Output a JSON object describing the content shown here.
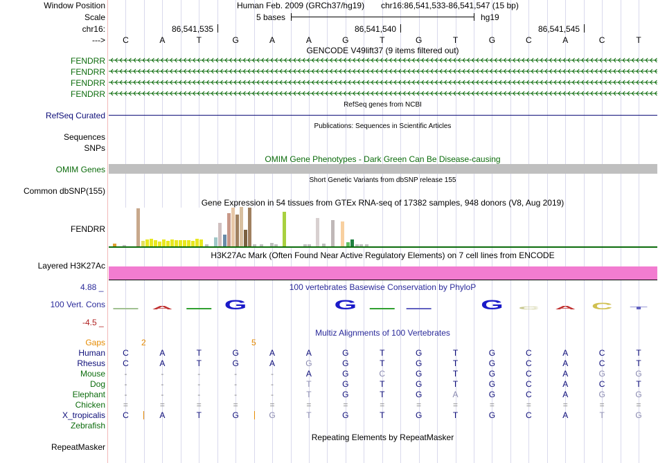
{
  "colors": {
    "gencode_green": "#0b6b0b",
    "refseq_navy": "#0c0c78",
    "gray_bar": "#bfbfbf",
    "h3k27ac_pink": "#f27cd0",
    "gaps_orange": "#e58a00",
    "cons_blue": "#2a2a9a",
    "cons_red": "#b02020"
  },
  "header": {
    "window_position_label": "Window Position",
    "assembly_text": "Human Feb. 2009 (GRCh37/hg19)",
    "position_text": "chr16:86,541,533-86,541,547 (15 bp)",
    "scale_label": "Scale",
    "scale_text": "5 bases",
    "scale_db": "hg19",
    "chrom_label": "chr16:",
    "strand_label": "--->",
    "coords": [
      "86,541,535",
      "86,541,540",
      "86,541,545"
    ]
  },
  "bases": [
    "C",
    "A",
    "T",
    "G",
    "A",
    "A",
    "G",
    "T",
    "G",
    "T",
    "G",
    "C",
    "A",
    "C",
    "T"
  ],
  "gencode": {
    "title": "GENCODE V49lift37 (9 items filtered out)",
    "tracks": [
      "FENDRR",
      "FENDRR",
      "FENDRR",
      "FENDRR"
    ]
  },
  "refseq": {
    "label": "RefSeq Curated",
    "title": "RefSeq genes from NCBI"
  },
  "publications": {
    "title": "Publications: Sequences in Scientific Articles",
    "label1": "Sequences",
    "label2": "SNPs"
  },
  "omim": {
    "title": "OMIM Gene Phenotypes - Dark Green Can Be Disease-causing",
    "label": "OMIM Genes"
  },
  "dbsnp": {
    "title": "Short Genetic Variants from dbSNP release 155",
    "label": "Common dbSNP(155)"
  },
  "gtex": {
    "title": "Gene Expression in 54 tissues from GTEx RNA-seq of 17382 samples, 948 donors (V8, Aug 2019)",
    "label": "FENDRR"
  },
  "h3k27ac": {
    "title": "H3K27Ac Mark (Often Found Near Active Regulatory Elements) on 7 cell lines from ENCODE",
    "label": "Layered H3K27Ac"
  },
  "conservation": {
    "title": "100 vertebrates Basewise Conservation by PhyloP",
    "label": "100 Vert. Cons",
    "ymax": "4.88 _",
    "ymin": "-4.5 _"
  },
  "multiz": {
    "title": "Multiz Alignments of 100 Vertebrates",
    "gaps_label": "Gaps",
    "gap_counts": [
      "2",
      "5"
    ],
    "species": [
      {
        "name": "Human",
        "bases": [
          "C",
          "A",
          "T",
          "G",
          "A",
          "A",
          "G",
          "T",
          "G",
          "T",
          "G",
          "C",
          "A",
          "C",
          "T"
        ]
      },
      {
        "name": "Rhesus",
        "bases": [
          "C",
          "A",
          "T",
          "G",
          "A",
          "G",
          "G",
          "T",
          "G",
          "T",
          "G",
          "C",
          "A",
          "C",
          "T"
        ]
      },
      {
        "name": "Mouse",
        "bases": [
          "-",
          "-",
          "-",
          "-",
          "-",
          "A",
          "G",
          "C",
          "G",
          "T",
          "G",
          "C",
          "A",
          "G",
          "G"
        ]
      },
      {
        "name": "Dog",
        "bases": [
          "-",
          "-",
          "-",
          "-",
          "-",
          "T",
          "G",
          "T",
          "G",
          "T",
          "G",
          "C",
          "A",
          "C",
          "T"
        ]
      },
      {
        "name": "Elephant",
        "bases": [
          "-",
          "-",
          "-",
          "-",
          "-",
          "T",
          "G",
          "T",
          "G",
          "A",
          "G",
          "C",
          "A",
          "G",
          "G"
        ]
      },
      {
        "name": "Chicken",
        "bases": [
          "=",
          "=",
          "=",
          "=",
          "=",
          "=",
          "=",
          "=",
          "=",
          "=",
          "=",
          "=",
          "=",
          "=",
          "="
        ]
      },
      {
        "name": "X_tropicalis",
        "bases": [
          "C",
          "A",
          "T",
          "G",
          "G",
          "T",
          "G",
          "T",
          "G",
          "T",
          "G",
          "C",
          "A",
          "T",
          "G"
        ]
      },
      {
        "name": "Zebrafish",
        "bases": [
          "",
          "",
          "",
          "",
          "",
          "",
          "",
          "",
          "",
          "",
          "",
          "",
          "",
          "",
          ""
        ]
      }
    ]
  },
  "repeatmasker": {
    "title": "Repeating Elements by RepeatMasker",
    "label": "RepeatMasker"
  }
}
